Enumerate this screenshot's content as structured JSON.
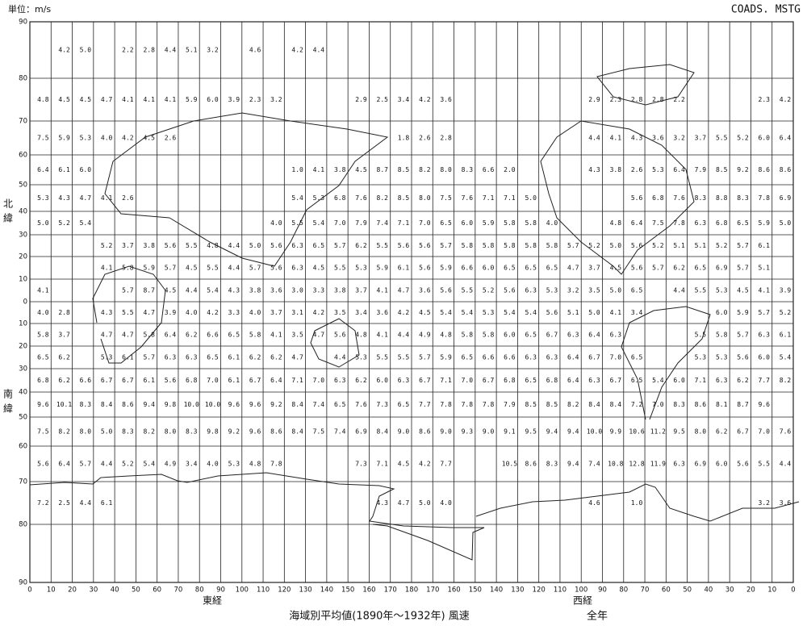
{
  "header": {
    "unit": "単位：m/s",
    "code": "COADS. MSTG"
  },
  "axis": {
    "north": "北緯",
    "south": "南緯",
    "east": "東経",
    "west": "西経",
    "lat": [
      "90",
      "80",
      "70",
      "60",
      "50",
      "40",
      "30",
      "20",
      "10",
      "0",
      "10",
      "20",
      "30",
      "40",
      "50",
      "60",
      "70",
      "80",
      "90"
    ],
    "lon": [
      "0",
      "10",
      "20",
      "30",
      "40",
      "50",
      "60",
      "70",
      "80",
      "90",
      "100",
      "110",
      "120",
      "130",
      "140",
      "150",
      "160",
      "170",
      "180",
      "170",
      "160",
      "150",
      "140",
      "130",
      "120",
      "110",
      "100",
      "90",
      "80",
      "70",
      "60",
      "50",
      "40",
      "30",
      "20",
      "10",
      "0"
    ]
  },
  "footer": {
    "title": "海域別平均値(1890年～1932年) 風速",
    "period": "全年"
  },
  "grid": [
    [
      null,
      "4.2",
      "5.0",
      null,
      "2.2",
      "2.8",
      "4.4",
      "5.1",
      "3.2",
      null,
      "4.6",
      null,
      "4.2",
      "4.4",
      null,
      null,
      null,
      null,
      null,
      null,
      null,
      null,
      null,
      null,
      null,
      null,
      null,
      null,
      null,
      null,
      null,
      null,
      null,
      null,
      null,
      null
    ],
    [
      "4.8",
      "4.5",
      "4.5",
      "4.7",
      "4.1",
      "4.1",
      "4.1",
      "5.9",
      "6.0",
      "3.9",
      "2.3",
      "3.2",
      null,
      null,
      null,
      "2.9",
      "2.5",
      "3.4",
      "4.2",
      "3.6",
      null,
      null,
      null,
      null,
      null,
      null,
      "2.9",
      "2.3",
      "2.8",
      "2.8",
      "2.2",
      null,
      null,
      null,
      "2.3",
      "4.2"
    ],
    [
      "7.5",
      "5.9",
      "5.3",
      "4.0",
      "4.2",
      "4.5",
      "2.6",
      null,
      null,
      null,
      null,
      null,
      null,
      null,
      null,
      null,
      null,
      "1.8",
      "2.6",
      "2.8",
      null,
      null,
      null,
      null,
      null,
      null,
      "4.4",
      "4.1",
      "4.3",
      "3.6",
      "3.2",
      "3.7",
      "5.5",
      "5.2",
      "6.0",
      "6.4"
    ],
    [
      "6.4",
      "6.1",
      "6.0",
      null,
      null,
      null,
      null,
      null,
      null,
      null,
      null,
      null,
      "1.0",
      "4.1",
      "3.8",
      "4.5",
      "8.7",
      "8.5",
      "8.2",
      "8.0",
      "8.3",
      "6.6",
      "2.0",
      null,
      null,
      null,
      "4.3",
      "3.8",
      "2.6",
      "5.3",
      "6.4",
      "7.9",
      "8.5",
      "9.2",
      "8.6",
      "8.6"
    ],
    [
      "5.3",
      "4.3",
      "4.7",
      "4.1",
      "2.6",
      null,
      null,
      null,
      null,
      null,
      null,
      null,
      "5.4",
      "5.3",
      "6.8",
      "7.6",
      "8.2",
      "8.5",
      "8.0",
      "7.5",
      "7.6",
      "7.1",
      "7.1",
      "5.0",
      null,
      null,
      null,
      null,
      "5.6",
      "6.8",
      "7.6",
      "8.3",
      "8.8",
      "8.3",
      "7.8",
      "6.9"
    ],
    [
      "5.0",
      "5.2",
      "5.4",
      null,
      null,
      null,
      null,
      null,
      null,
      null,
      null,
      "4.0",
      "5.5",
      "5.4",
      "7.0",
      "7.9",
      "7.4",
      "7.1",
      "7.0",
      "6.5",
      "6.0",
      "5.9",
      "5.8",
      "5.8",
      "4.0",
      null,
      null,
      "4.8",
      "6.4",
      "7.5",
      "7.8",
      "6.3",
      "6.8",
      "6.5",
      "5.9",
      "5.0"
    ],
    [
      null,
      null,
      null,
      "5.2",
      "3.7",
      "3.8",
      "5.6",
      "5.5",
      "4.8",
      "4.4",
      "5.0",
      "5.6",
      "6.3",
      "6.5",
      "5.7",
      "6.2",
      "5.5",
      "5.6",
      "5.6",
      "5.7",
      "5.8",
      "5.8",
      "5.8",
      "5.8",
      "5.8",
      "5.7",
      "5.2",
      "5.0",
      "5.6",
      "5.2",
      "5.1",
      "5.1",
      "5.2",
      "5.7",
      "6.1",
      null
    ],
    [
      null,
      null,
      null,
      "4.1",
      "5.8",
      "5.9",
      "5.7",
      "4.5",
      "5.5",
      "4.4",
      "5.7",
      "5.6",
      "6.3",
      "4.5",
      "5.5",
      "5.3",
      "5.9",
      "6.1",
      "5.6",
      "5.9",
      "6.6",
      "6.0",
      "6.5",
      "6.5",
      "6.5",
      "4.7",
      "3.7",
      "4.5",
      "5.6",
      "5.7",
      "6.2",
      "6.5",
      "6.9",
      "5.7",
      "5.1",
      null
    ],
    [
      "4.1",
      null,
      null,
      null,
      "5.7",
      "8.7",
      "4.5",
      "4.4",
      "5.4",
      "4.3",
      "3.8",
      "3.6",
      "3.0",
      "3.3",
      "3.8",
      "3.7",
      "4.1",
      "4.7",
      "3.6",
      "5.6",
      "5.5",
      "5.2",
      "5.6",
      "6.3",
      "5.3",
      "3.2",
      "3.5",
      "5.0",
      "6.5",
      null,
      "4.4",
      "5.5",
      "5.3",
      "4.5",
      "4.1",
      "3.9"
    ],
    [
      "4.0",
      "2.8",
      null,
      "4.3",
      "5.5",
      "4.7",
      "3.9",
      "4.0",
      "4.2",
      "3.3",
      "4.0",
      "3.7",
      "3.1",
      "4.2",
      "3.5",
      "3.4",
      "3.6",
      "4.2",
      "4.5",
      "5.4",
      "5.4",
      "5.3",
      "5.4",
      "5.4",
      "5.6",
      "5.1",
      "5.0",
      "4.1",
      "3.4",
      null,
      null,
      null,
      "6.0",
      "5.9",
      "5.7",
      "5.2"
    ],
    [
      "5.8",
      "3.7",
      null,
      "4.7",
      "4.7",
      "5.8",
      "6.4",
      "6.2",
      "6.6",
      "6.5",
      "5.8",
      "4.1",
      "3.5",
      "4.7",
      "5.6",
      "4.8",
      "4.1",
      "4.4",
      "4.9",
      "4.8",
      "5.8",
      "5.8",
      "6.0",
      "6.5",
      "6.7",
      "6.3",
      "6.4",
      "6.3",
      null,
      null,
      null,
      "5.5",
      "5.8",
      "5.7",
      "6.3",
      "6.1"
    ],
    [
      "6.5",
      "6.2",
      null,
      "5.3",
      "6.1",
      "5.7",
      "6.3",
      "6.3",
      "6.5",
      "6.1",
      "6.2",
      "6.2",
      "4.7",
      null,
      "4.4",
      "5.3",
      "5.5",
      "5.5",
      "5.7",
      "5.9",
      "6.5",
      "6.6",
      "6.6",
      "6.3",
      "6.3",
      "6.4",
      "6.7",
      "7.0",
      "6.5",
      null,
      null,
      "5.3",
      "5.3",
      "5.6",
      "6.0",
      "5.4"
    ],
    [
      "6.8",
      "6.2",
      "6.6",
      "6.7",
      "6.7",
      "6.1",
      "5.6",
      "6.8",
      "7.0",
      "6.1",
      "6.7",
      "6.4",
      "7.1",
      "7.0",
      "6.3",
      "6.2",
      "6.0",
      "6.3",
      "6.7",
      "7.1",
      "7.0",
      "6.7",
      "6.8",
      "6.5",
      "6.8",
      "6.4",
      "6.3",
      "6.7",
      "6.5",
      "5.4",
      "6.0",
      "7.1",
      "6.3",
      "6.2",
      "7.7",
      "8.2"
    ],
    [
      "9.6",
      "10.1",
      "8.3",
      "8.4",
      "8.6",
      "9.4",
      "9.8",
      "10.0",
      "10.0",
      "9.6",
      "9.6",
      "9.2",
      "8.4",
      "7.4",
      "6.5",
      "7.6",
      "7.3",
      "6.5",
      "7.7",
      "7.8",
      "7.8",
      "7.8",
      "7.9",
      "8.5",
      "8.5",
      "8.2",
      "8.4",
      "8.4",
      "7.2",
      "7.0",
      "8.3",
      "8.6",
      "8.1",
      "8.7",
      "9.6",
      null
    ],
    [
      "7.5",
      "8.2",
      "8.0",
      "5.0",
      "8.3",
      "8.2",
      "8.0",
      "8.3",
      "9.8",
      "9.2",
      "9.6",
      "8.6",
      "8.4",
      "7.5",
      "7.4",
      "6.9",
      "8.4",
      "9.0",
      "8.6",
      "9.0",
      "9.3",
      "9.0",
      "9.1",
      "9.5",
      "9.4",
      "9.4",
      "10.0",
      "9.9",
      "10.6",
      "11.2",
      "9.5",
      "8.0",
      "6.2",
      "6.7",
      "7.0",
      "7.6"
    ],
    [
      "5.6",
      "6.4",
      "5.7",
      "4.4",
      "5.2",
      "5.4",
      "4.9",
      "3.4",
      "4.0",
      "5.3",
      "4.8",
      "7.8",
      null,
      null,
      null,
      "7.3",
      "7.1",
      "4.5",
      "4.2",
      "7.7",
      null,
      null,
      "10.5",
      "8.6",
      "8.3",
      "9.4",
      "7.4",
      "10.8",
      "12.8",
      "11.9",
      "6.3",
      "6.9",
      "6.0",
      "5.6",
      "5.5",
      "4.4"
    ],
    [
      "7.2",
      "2.5",
      "4.4",
      "6.1",
      null,
      null,
      null,
      null,
      null,
      null,
      null,
      null,
      null,
      null,
      null,
      null,
      "4.3",
      "4.7",
      "5.0",
      "4.0",
      null,
      null,
      null,
      null,
      null,
      null,
      "4.6",
      null,
      "1.0",
      null,
      null,
      null,
      null,
      null,
      "3.2",
      "3.6"
    ],
    [
      null,
      null,
      null,
      null,
      null,
      null,
      null,
      null,
      null,
      null,
      null,
      null,
      null,
      null,
      null,
      null,
      null,
      null,
      null,
      null,
      null,
      null,
      null,
      null,
      null,
      null,
      null,
      null,
      null,
      null,
      null,
      null,
      null,
      null,
      null,
      null
    ]
  ]
}
